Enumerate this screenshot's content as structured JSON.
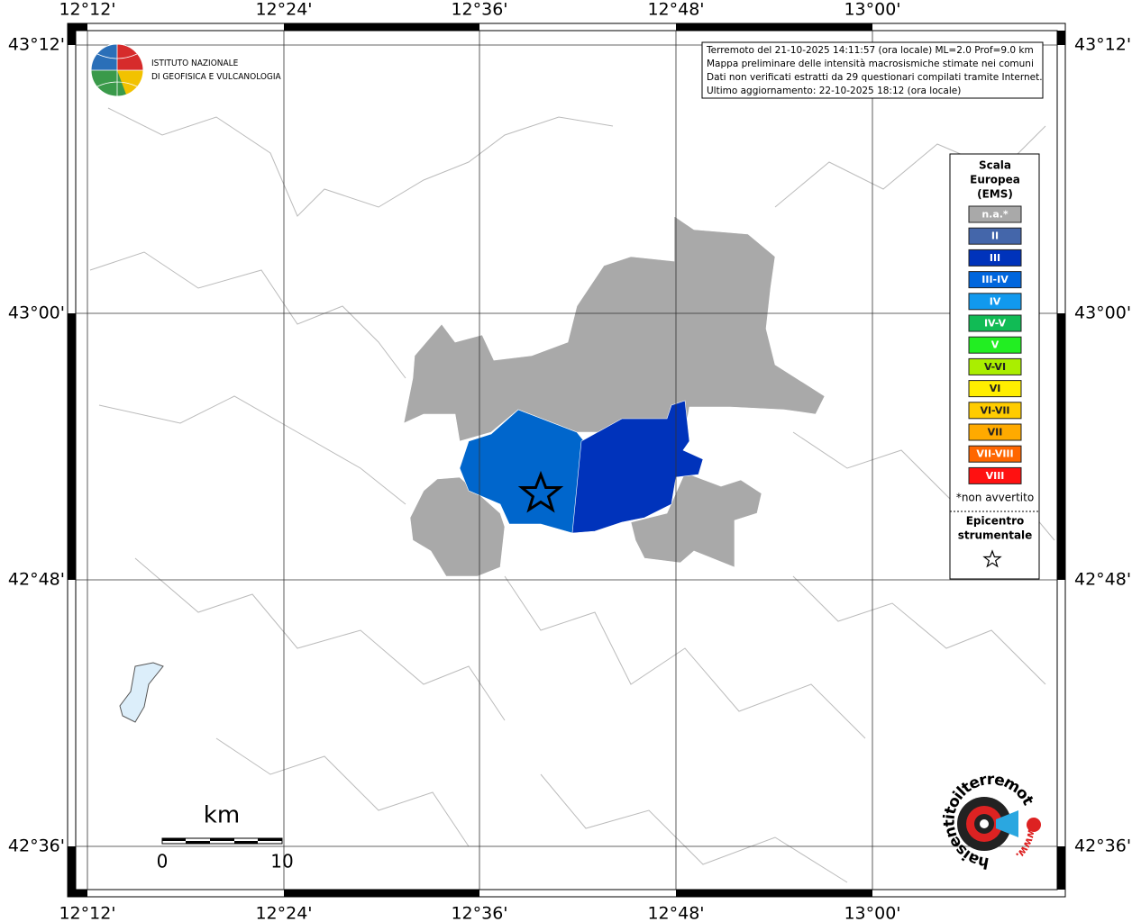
{
  "frame": {
    "x_labels": [
      "12°12'",
      "12°24'",
      "12°36'",
      "12°48'",
      "13°00'"
    ],
    "y_labels": [
      "43°12'",
      "43°00'",
      "42°48'",
      "42°36'"
    ]
  },
  "logo": {
    "lines": [
      "ISTITUTO NAZIONALE",
      "DI GEOFISICA E VULCANOLOGIA"
    ]
  },
  "info": {
    "lines": [
      "Terremoto del 21-10-2025 14:11:57 (ora locale) ML=2.0 Prof=9.0 km",
      "Mappa preliminare delle intensità macrosismiche stimate nei comuni",
      "Dati non verificati estratti da 29 questionari compilati tramite Internet.",
      "Ultimo aggiornamento: 22-10-2025 18:12 (ora locale)"
    ]
  },
  "legend": {
    "title": [
      "Scala",
      "Europea",
      "(EMS)"
    ],
    "items": [
      {
        "label": "n.a.*",
        "color": "#a9a9a9"
      },
      {
        "label": "II",
        "color": "#4466aa"
      },
      {
        "label": "III",
        "color": "#0033bb"
      },
      {
        "label": "III-IV",
        "color": "#0066dd"
      },
      {
        "label": "IV",
        "color": "#1199ee"
      },
      {
        "label": "IV-V",
        "color": "#11bb55"
      },
      {
        "label": "V",
        "color": "#22ee22"
      },
      {
        "label": "V-VI",
        "color": "#aaee00"
      },
      {
        "label": "VI",
        "color": "#ffee00"
      },
      {
        "label": "VI-VII",
        "color": "#ffcc00"
      },
      {
        "label": "VII",
        "color": "#ffaa00"
      },
      {
        "label": "VII-VIII",
        "color": "#ff6600"
      },
      {
        "label": "VIII",
        "color": "#ff1111"
      }
    ],
    "footnote": "*non avvertito",
    "epicenter": [
      "Epicentro",
      "strumentale"
    ]
  },
  "scale_bar": {
    "unit": "km",
    "start": 0,
    "end": 10
  },
  "hsit": {
    "name": "haisentitoilterremoto.it",
    "www": "www."
  }
}
